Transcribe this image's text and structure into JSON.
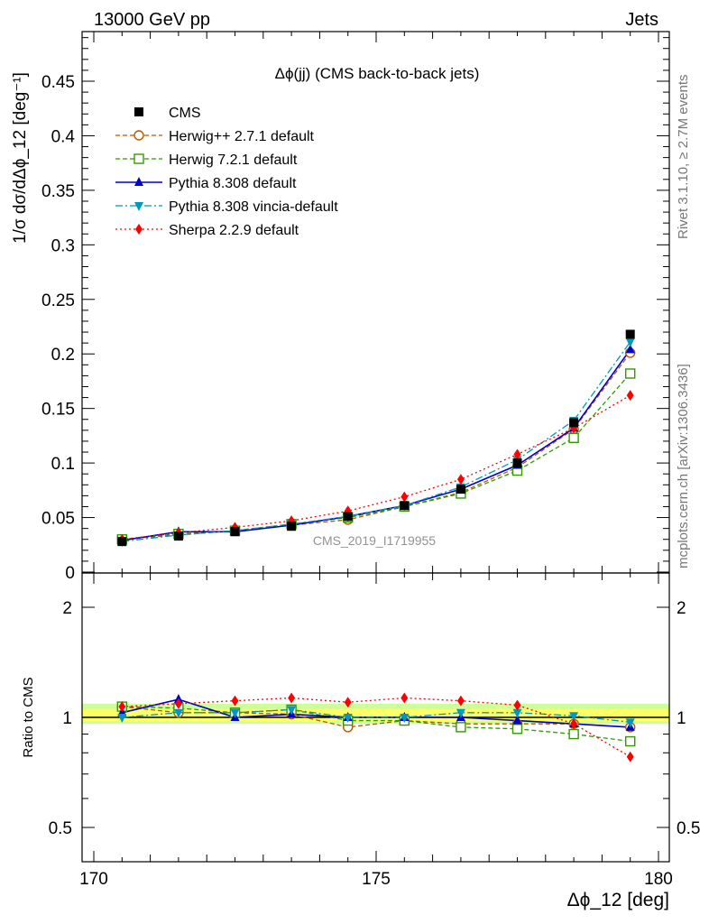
{
  "header": {
    "left": "13000 GeV pp",
    "right": "Jets"
  },
  "side_text": {
    "rivet": "Rivet 3.1.10, ≥ 2.7M events",
    "mcplots": "mcplots.cern.ch [arXiv:1306.3436]"
  },
  "watermark": "CMS_2019_I1719955",
  "chart_data": {
    "type": "line",
    "title": "Δϕ(jj) (CMS back-to-back jets)",
    "ylabel": "1/σ dσ/dΔϕ_12 [deg⁻¹]",
    "xlabel": "Δϕ_12 [deg]",
    "ratio_ylabel": "Ratio to CMS",
    "xlim": [
      170,
      180
    ],
    "ylim": [
      0,
      0.5
    ],
    "ratio_ylim": [
      0.4,
      2.2
    ],
    "x_ticks": [
      "170",
      "175",
      "180"
    ],
    "y_ticks": [
      "0",
      "0.05",
      "0.1",
      "0.15",
      "0.2",
      "0.25",
      "0.3",
      "0.35",
      "0.4",
      "0.45"
    ],
    "ratio_ticks": [
      "0.5",
      "1",
      "2"
    ],
    "x": [
      170.5,
      171.5,
      172.5,
      173.5,
      174.5,
      175.5,
      176.5,
      177.5,
      178.5,
      179.5
    ],
    "legend_position": "top-left",
    "series": [
      {
        "name": "CMS",
        "color": "#000000",
        "marker": "square-filled",
        "line": "none",
        "values": [
          0.028,
          0.033,
          0.037,
          0.042,
          0.051,
          0.061,
          0.076,
          0.1,
          0.137,
          0.218
        ]
      },
      {
        "name": "Herwig++ 2.7.1 default",
        "color": "#b35900",
        "marker": "circle-open",
        "line": "dashed",
        "values": [
          0.03,
          0.034,
          0.038,
          0.043,
          0.048,
          0.06,
          0.073,
          0.096,
          0.131,
          0.201
        ]
      },
      {
        "name": "Herwig 7.2.1 default",
        "color": "#339900",
        "marker": "square-open",
        "line": "dashed",
        "values": [
          0.03,
          0.035,
          0.038,
          0.044,
          0.05,
          0.06,
          0.072,
          0.093,
          0.123,
          0.182
        ]
      },
      {
        "name": "Pythia 8.308 default",
        "color": "#0000cc",
        "marker": "triangle-up",
        "line": "solid",
        "values": [
          0.029,
          0.037,
          0.037,
          0.043,
          0.051,
          0.061,
          0.076,
          0.098,
          0.132,
          0.204
        ]
      },
      {
        "name": "Pythia 8.308 vincia-default",
        "color": "#0099bb",
        "marker": "triangle-down",
        "line": "dashdot",
        "values": [
          0.028,
          0.034,
          0.038,
          0.044,
          0.051,
          0.061,
          0.078,
          0.103,
          0.139,
          0.211
        ]
      },
      {
        "name": "Sherpa 2.2.9 default",
        "color": "#ff0000",
        "marker": "diamond",
        "line": "dotted",
        "values": [
          0.03,
          0.036,
          0.041,
          0.047,
          0.056,
          0.069,
          0.085,
          0.108,
          0.132,
          0.162
        ]
      }
    ],
    "ratios": [
      {
        "name": "Herwig++ 2.7.1 default",
        "values": [
          1.07,
          1.03,
          1.03,
          1.02,
          0.94,
          0.98,
          0.96,
          0.96,
          0.96,
          0.94
        ]
      },
      {
        "name": "Herwig 7.2.1 default",
        "values": [
          1.07,
          1.06,
          1.03,
          1.05,
          0.98,
          0.98,
          0.94,
          0.93,
          0.9,
          0.86
        ]
      },
      {
        "name": "Pythia 8.308 default",
        "values": [
          1.03,
          1.12,
          1.0,
          1.02,
          1.0,
          1.0,
          1.0,
          0.98,
          0.96,
          0.94
        ]
      },
      {
        "name": "Pythia 8.308 vincia-default",
        "values": [
          1.0,
          1.03,
          1.03,
          1.05,
          1.0,
          1.0,
          1.03,
          1.03,
          1.01,
          0.97
        ]
      },
      {
        "name": "Sherpa 2.2.9 default",
        "values": [
          1.07,
          1.09,
          1.11,
          1.13,
          1.1,
          1.13,
          1.11,
          1.08,
          0.96,
          0.78
        ]
      }
    ],
    "band_colors": {
      "inner": "#ffff66",
      "outer": "#ccff99"
    }
  }
}
